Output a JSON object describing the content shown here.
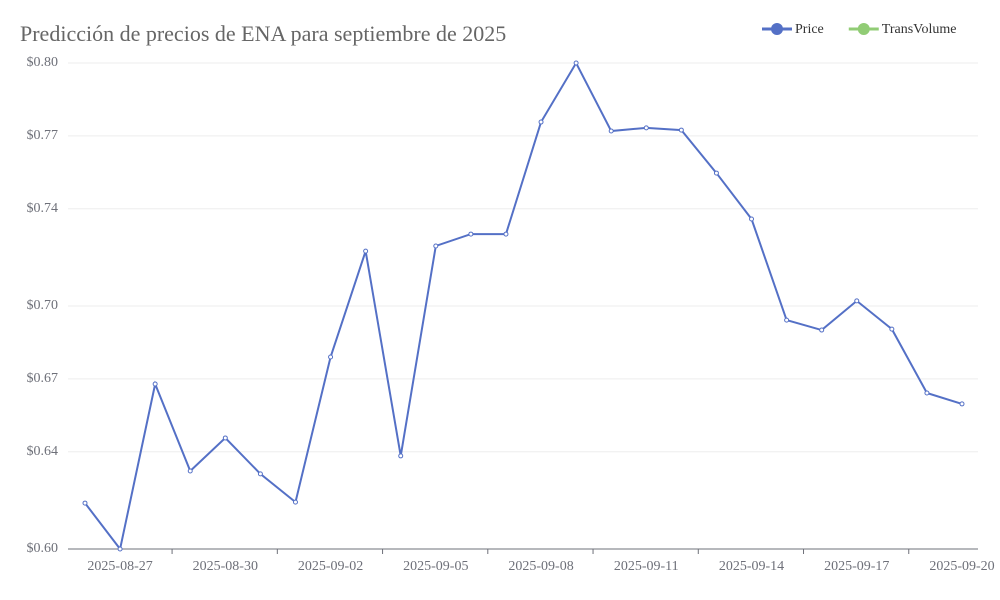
{
  "chart_data": {
    "type": "line",
    "title": "Predicción de precios de ENA para septiembre de 2025",
    "x": [
      "2025-08-26",
      "2025-08-27",
      "2025-08-28",
      "2025-08-29",
      "2025-08-30",
      "2025-08-31",
      "2025-09-01",
      "2025-09-02",
      "2025-09-03",
      "2025-09-04",
      "2025-09-05",
      "2025-09-06",
      "2025-09-07",
      "2025-09-08",
      "2025-09-09",
      "2025-09-10",
      "2025-09-11",
      "2025-09-12",
      "2025-09-13",
      "2025-09-14",
      "2025-09-15",
      "2025-09-16",
      "2025-09-17",
      "2025-09-18",
      "2025-09-19",
      "2025-09-20"
    ],
    "xticks": [
      "2025-08-27",
      "2025-08-30",
      "2025-09-02",
      "2025-09-05",
      "2025-09-08",
      "2025-09-11",
      "2025-09-14",
      "2025-09-17",
      "2025-09-20"
    ],
    "series": [
      {
        "name": "Price",
        "color": "#5470c6",
        "values": [
          0.6189,
          0.6,
          0.6679,
          0.6321,
          0.6457,
          0.6309,
          0.6193,
          0.679,
          0.7226,
          0.6383,
          0.7247,
          0.7296,
          0.7296,
          0.7757,
          0.8,
          0.772,
          0.7733,
          0.7724,
          0.7547,
          0.7358,
          0.6942,
          0.6901,
          0.7021,
          0.6905,
          0.6642,
          0.6597
        ]
      }
    ],
    "legend": {
      "position": "top-right",
      "items": [
        {
          "name": "Price",
          "color": "#5470c6"
        },
        {
          "name": "TransVolume",
          "color": "#91cc75"
        }
      ]
    },
    "ylim": [
      0.6,
      0.8
    ],
    "yticks": [
      {
        "value": 0.6,
        "label": "$0.60"
      },
      {
        "value": 0.64,
        "label": "$0.64"
      },
      {
        "value": 0.67,
        "label": "$0.67"
      },
      {
        "value": 0.7,
        "label": "$0.70"
      },
      {
        "value": 0.74,
        "label": "$0.74"
      },
      {
        "value": 0.77,
        "label": "$0.77"
      },
      {
        "value": 0.8,
        "label": "$0.80"
      }
    ],
    "grid": true
  }
}
